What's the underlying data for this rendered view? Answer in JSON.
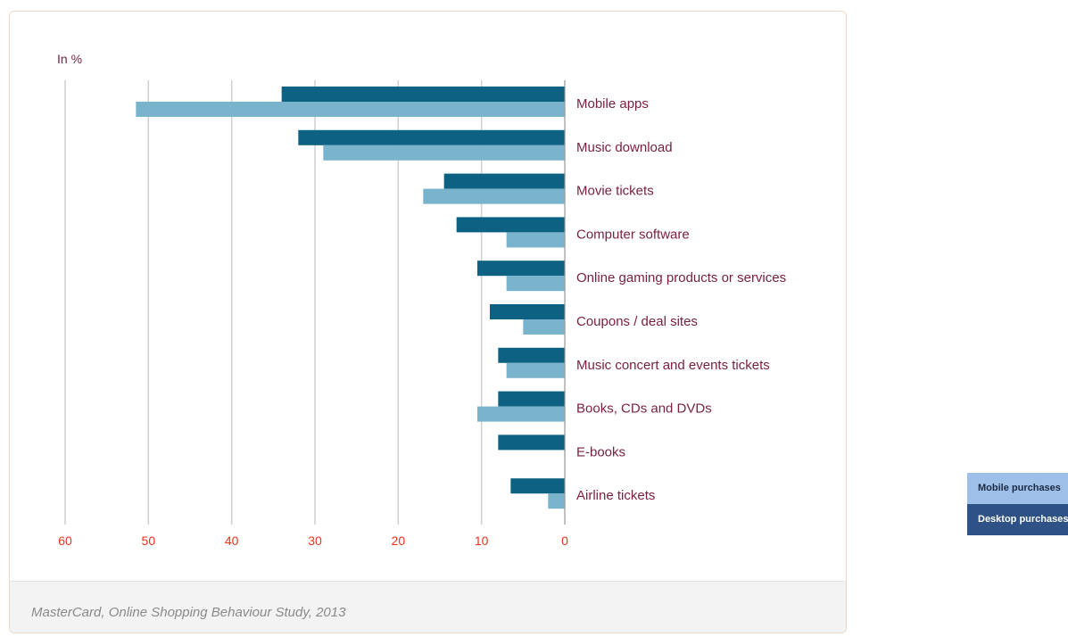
{
  "chart_data": {
    "type": "bar",
    "orientation": "horizontal",
    "unit_label": "In %",
    "categories": [
      "Mobile apps",
      "Music download",
      "Movie tickets",
      "Computer software",
      "Online gaming products or services",
      "Coupons / deal sites",
      "Music concert and events tickets",
      "Books, CDs and DVDs",
      "E-books",
      "Airline tickets"
    ],
    "series": [
      {
        "name": "Desktop purchases",
        "color": "#0d6283",
        "values": [
          34,
          32,
          14.5,
          13,
          10.5,
          9,
          8,
          8,
          8,
          6.5
        ]
      },
      {
        "name": "Mobile purchases",
        "color": "#7ab3cc",
        "values": [
          51.5,
          29,
          17,
          7,
          7,
          5,
          7,
          10.5,
          0,
          2
        ]
      }
    ],
    "xlim": [
      0,
      60
    ],
    "x_direction": "reversed",
    "x_ticks": [
      "60",
      "50",
      "40",
      "30",
      "20",
      "10",
      "0"
    ],
    "grid": true,
    "legend_position": "right"
  },
  "source_note": "MasterCard, Online Shopping Behaviour Study, 2013",
  "legend": {
    "mobile_label": "Mobile purchases",
    "desktop_label": "Desktop purchases"
  },
  "colors": {
    "category_text": "#7a1f3d",
    "tick_text": "#e8341c",
    "unit_text": "#7a1f3d",
    "gridline": "#cfcfcf"
  }
}
